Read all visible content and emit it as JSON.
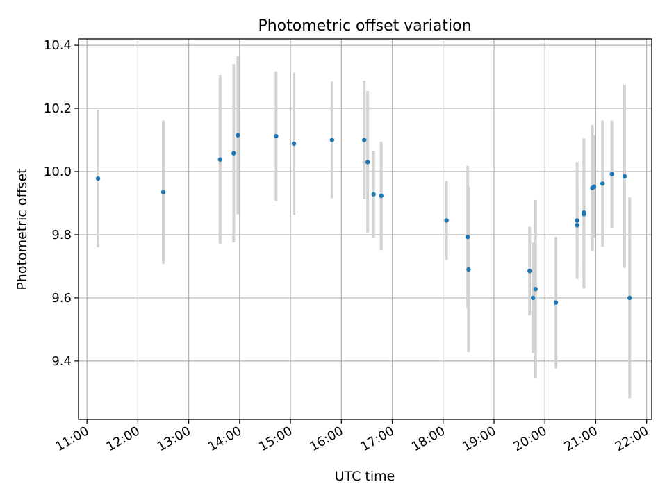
{
  "chart_data": {
    "type": "scatter",
    "title": "Photometric offset variation",
    "xlabel": "UTC time",
    "ylabel": "Photometric offset",
    "x_unit": "UTC time (HH:MM)",
    "xlim": [
      "10:50",
      "22:06"
    ],
    "ylim": [
      9.215,
      10.42
    ],
    "x_ticks": [
      "11:00",
      "12:00",
      "13:00",
      "14:00",
      "15:00",
      "16:00",
      "17:00",
      "18:00",
      "19:00",
      "20:00",
      "21:00",
      "22:00"
    ],
    "y_ticks": [
      9.4,
      9.6,
      9.8,
      10.0,
      10.2,
      10.4
    ],
    "grid": true,
    "point_color": "#1f77b4",
    "errorbar_color": "#d3d3d3",
    "points": [
      {
        "x": "11:13",
        "y": 9.978,
        "yerr": 0.217
      },
      {
        "x": "12:30",
        "y": 9.935,
        "yerr": 0.227
      },
      {
        "x": "13:37",
        "y": 10.038,
        "yerr": 0.268
      },
      {
        "x": "13:53",
        "y": 10.058,
        "yerr": 0.282
      },
      {
        "x": "13:58",
        "y": 10.115,
        "yerr": 0.25
      },
      {
        "x": "14:43",
        "y": 10.112,
        "yerr": 0.205
      },
      {
        "x": "15:04",
        "y": 10.088,
        "yerr": 0.225
      },
      {
        "x": "15:49",
        "y": 10.1,
        "yerr": 0.185
      },
      {
        "x": "16:27",
        "y": 10.1,
        "yerr": 0.188
      },
      {
        "x": "16:31",
        "y": 10.03,
        "yerr": 0.225
      },
      {
        "x": "16:38",
        "y": 9.928,
        "yerr": 0.138
      },
      {
        "x": "16:47",
        "y": 9.923,
        "yerr": 0.172
      },
      {
        "x": "18:04",
        "y": 9.845,
        "yerr": 0.125
      },
      {
        "x": "18:29",
        "y": 9.793,
        "yerr": 0.225
      },
      {
        "x": "18:30",
        "y": 9.69,
        "yerr": 0.262
      },
      {
        "x": "19:42",
        "y": 9.685,
        "yerr": 0.14
      },
      {
        "x": "19:46",
        "y": 9.6,
        "yerr": 0.175
      },
      {
        "x": "19:49",
        "y": 9.628,
        "yerr": 0.282
      },
      {
        "x": "20:13",
        "y": 9.585,
        "yerr": 0.208
      },
      {
        "x": "20:38",
        "y": 9.83,
        "yerr": 0.13
      },
      {
        "x": "20:38",
        "y": 9.845,
        "yerr": 0.185
      },
      {
        "x": "20:46",
        "y": 9.865,
        "yerr": 0.235
      },
      {
        "x": "20:46",
        "y": 9.87,
        "yerr": 0.235
      },
      {
        "x": "20:56",
        "y": 9.948,
        "yerr": 0.2
      },
      {
        "x": "20:58",
        "y": 9.952,
        "yerr": 0.162
      },
      {
        "x": "21:08",
        "y": 9.962,
        "yerr": 0.2
      },
      {
        "x": "21:19",
        "y": 9.992,
        "yerr": 0.17
      },
      {
        "x": "21:34",
        "y": 9.985,
        "yerr": 0.29
      },
      {
        "x": "21:40",
        "y": 9.6,
        "yerr": 0.318
      }
    ]
  }
}
